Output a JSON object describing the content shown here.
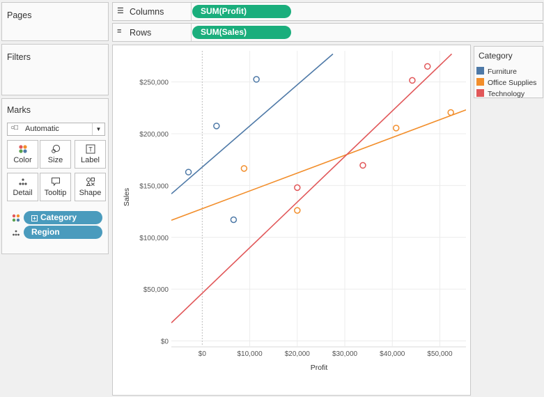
{
  "pages": {
    "title": "Pages"
  },
  "filters": {
    "title": "Filters"
  },
  "columns_shelf": {
    "label": "Columns",
    "pill": "SUM(Profit)"
  },
  "rows_shelf": {
    "label": "Rows",
    "pill": "SUM(Sales)"
  },
  "marks": {
    "title": "Marks",
    "mark_type": "Automatic",
    "buttons": [
      {
        "label": "Color",
        "icon": "color-dots-icon"
      },
      {
        "label": "Size",
        "icon": "size-icon"
      },
      {
        "label": "Label",
        "icon": "label-T-icon"
      },
      {
        "label": "Detail",
        "icon": "detail-dots-icon"
      },
      {
        "label": "Tooltip",
        "icon": "tooltip-bubble-icon"
      },
      {
        "label": "Shape",
        "icon": "shape-icon"
      }
    ],
    "fields": [
      {
        "name": "Category",
        "encoding": "color"
      },
      {
        "name": "Region",
        "encoding": "detail"
      }
    ]
  },
  "legend": {
    "title": "Category",
    "items": [
      {
        "label": "Furniture",
        "color": "#4e79a7"
      },
      {
        "label": "Office Supplies",
        "color": "#f28e2b"
      },
      {
        "label": "Technology",
        "color": "#e15759"
      }
    ]
  },
  "chart_data": {
    "type": "scatter",
    "xlabel": "Profit",
    "ylabel": "Sales",
    "xlim": [
      -6500,
      55500
    ],
    "ylim": [
      -5000,
      280000
    ],
    "xticks": [
      0,
      10000,
      20000,
      30000,
      40000,
      50000
    ],
    "xtick_labels": [
      "$0",
      "$10,000",
      "$20,000",
      "$30,000",
      "$40,000",
      "$50,000"
    ],
    "yticks": [
      0,
      50000,
      100000,
      150000,
      200000,
      250000
    ],
    "ytick_labels": [
      "$0",
      "$50,000",
      "$100,000",
      "$150,000",
      "$200,000",
      "$250,000"
    ],
    "grid": true,
    "trend_lines": true,
    "series": [
      {
        "name": "Furniture",
        "color": "#4e79a7",
        "points": [
          [
            -2900,
            163000
          ],
          [
            3000,
            207500
          ],
          [
            6600,
            117000
          ],
          [
            11400,
            252500
          ]
        ],
        "trend": [
          [
            -6500,
            142000
          ],
          [
            27500,
            277000
          ]
        ]
      },
      {
        "name": "Office Supplies",
        "color": "#f28e2b",
        "points": [
          [
            8800,
            166500
          ],
          [
            20000,
            126000
          ],
          [
            40800,
            205500
          ],
          [
            52300,
            220500
          ]
        ],
        "trend": [
          [
            -6500,
            116500
          ],
          [
            55500,
            223000
          ]
        ]
      },
      {
        "name": "Technology",
        "color": "#e15759",
        "points": [
          [
            20000,
            148000
          ],
          [
            33800,
            169500
          ],
          [
            44200,
            251500
          ],
          [
            47400,
            265000
          ]
        ],
        "trend": [
          [
            -6500,
            17500
          ],
          [
            52500,
            277000
          ]
        ]
      }
    ]
  }
}
